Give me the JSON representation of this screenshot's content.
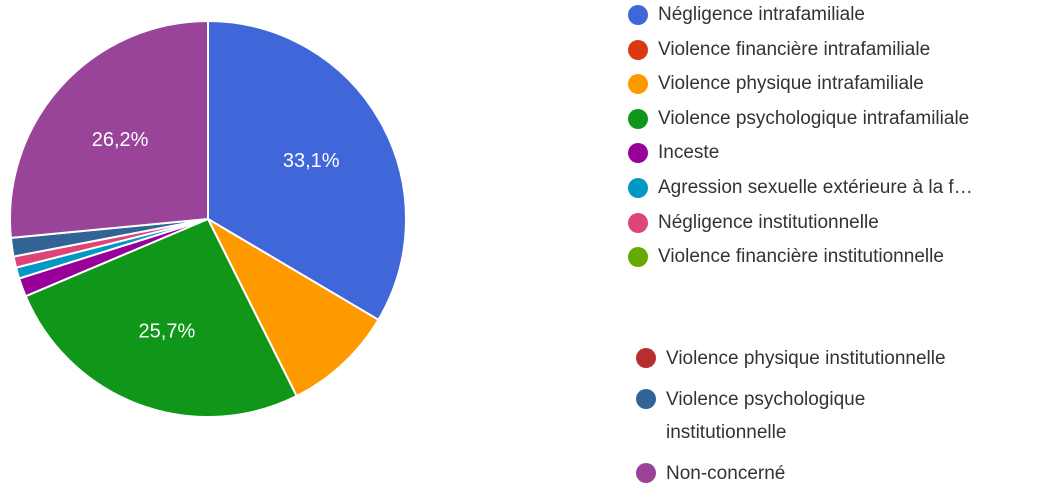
{
  "chart_data": {
    "type": "pie",
    "slices": [
      {
        "name": "Négligence intrafamiliale",
        "value": 33.1,
        "label": "33,1%",
        "color": "#3f67d9"
      },
      {
        "name": "Violence financière intrafamiliale",
        "value": 0.0,
        "label": "",
        "color": "#dc3912"
      },
      {
        "name": "Violence physique intrafamiliale",
        "value": 9.0,
        "label": "",
        "color": "#ff9900"
      },
      {
        "name": "Violence psychologique intrafamiliale",
        "value": 25.7,
        "label": "25,7%",
        "color": "#109618"
      },
      {
        "name": "Inceste",
        "value": 1.5,
        "label": "",
        "color": "#990099"
      },
      {
        "name": "Agression sexuelle extérieure à la f…",
        "value": 0.9,
        "label": "",
        "color": "#0099c6"
      },
      {
        "name": "Négligence institutionnelle",
        "value": 0.9,
        "label": "",
        "color": "#dd4477"
      },
      {
        "name": "Violence financière institutionnelle",
        "value": 0.0,
        "label": "",
        "color": "#66aa00"
      },
      {
        "name": "Violence physique institutionnelle",
        "value": 0.0,
        "label": "",
        "color": "#b82e2e"
      },
      {
        "name": "Violence psychologique institutionnelle",
        "value": 1.5,
        "label": "",
        "color": "#316395"
      },
      {
        "name": "Non-concerné",
        "value": 26.2,
        "label": "26,2%",
        "color": "#994499"
      }
    ],
    "legend_placement": "right",
    "start_angle_deg": 0,
    "direction": "clockwise"
  }
}
